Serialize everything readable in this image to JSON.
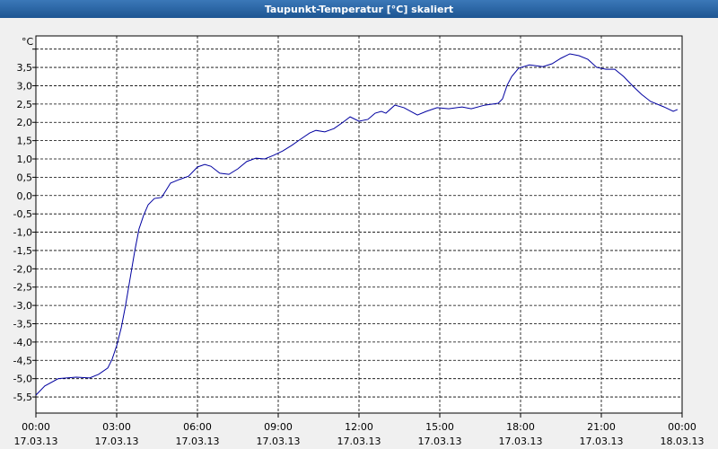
{
  "chart_data": {
    "type": "line",
    "title": "Taupunkt-Temperatur [°C] skaliert",
    "y_unit": "°C",
    "x": [
      0,
      0.33,
      0.83,
      1.5,
      2,
      2.33,
      2.67,
      2.83,
      3,
      3.17,
      3.33,
      3.5,
      3.67,
      3.83,
      4,
      4.17,
      4.4,
      4.67,
      4.83,
      5,
      5.33,
      5.67,
      6,
      6.27,
      6.5,
      6.83,
      7.17,
      7.5,
      7.83,
      8.17,
      8.5,
      8.83,
      9.17,
      9.5,
      9.83,
      10.17,
      10.4,
      10.73,
      11.07,
      11.4,
      11.67,
      12,
      12.33,
      12.6,
      12.83,
      13,
      13.33,
      13.67,
      14.17,
      14.5,
      14.9,
      15.33,
      15.83,
      16.17,
      16.67,
      17.17,
      17.33,
      17.5,
      17.67,
      17.93,
      18.33,
      18.83,
      19.17,
      19.5,
      19.83,
      20.17,
      20.5,
      20.83,
      21.17,
      21.5,
      21.83,
      22.17,
      22.5,
      22.83,
      23.33,
      23.67,
      23.83
    ],
    "series": [
      {
        "name": "Taupunkt",
        "color": "#0000a0",
        "values": [
          -5.45,
          -5.2,
          -5.0,
          -4.96,
          -4.98,
          -4.88,
          -4.71,
          -4.47,
          -4.1,
          -3.61,
          -3.0,
          -2.26,
          -1.52,
          -0.91,
          -0.54,
          -0.25,
          -0.08,
          -0.05,
          0.14,
          0.34,
          0.44,
          0.53,
          0.78,
          0.85,
          0.8,
          0.61,
          0.58,
          0.73,
          0.93,
          1.02,
          1.0,
          1.1,
          1.22,
          1.37,
          1.54,
          1.71,
          1.78,
          1.74,
          1.83,
          2.0,
          2.15,
          2.03,
          2.08,
          2.25,
          2.3,
          2.25,
          2.47,
          2.4,
          2.2,
          2.3,
          2.4,
          2.37,
          2.42,
          2.37,
          2.47,
          2.52,
          2.64,
          3.01,
          3.25,
          3.48,
          3.57,
          3.52,
          3.6,
          3.75,
          3.87,
          3.82,
          3.72,
          3.5,
          3.45,
          3.45,
          3.25,
          2.99,
          2.76,
          2.57,
          2.42,
          2.3,
          2.35
        ]
      }
    ],
    "xlim": [
      0,
      24
    ],
    "xticks": [
      {
        "value": 0,
        "label": "00:00"
      },
      {
        "value": 3,
        "label": "03:00"
      },
      {
        "value": 6,
        "label": "06:00"
      },
      {
        "value": 9,
        "label": "09:00"
      },
      {
        "value": 12,
        "label": "12:00"
      },
      {
        "value": 15,
        "label": "15:00"
      },
      {
        "value": 18,
        "label": "18:00"
      },
      {
        "value": 21,
        "label": "21:00"
      },
      {
        "value": 24,
        "label": "00:00"
      }
    ],
    "xtick_dates": [
      "17.03.13",
      "17.03.13",
      "17.03.13",
      "17.03.13",
      "17.03.13",
      "17.03.13",
      "17.03.13",
      "17.03.13",
      "18.03.13"
    ],
    "ylim": [
      -5.94,
      4.36
    ],
    "yticks": [
      {
        "value": -5.5,
        "label": "-5,5"
      },
      {
        "value": -5,
        "label": "-5,0"
      },
      {
        "value": -4.5,
        "label": "-4,5"
      },
      {
        "value": -4,
        "label": "-4,0"
      },
      {
        "value": -3.5,
        "label": "-3,5"
      },
      {
        "value": -3,
        "label": "-3,0"
      },
      {
        "value": -2.5,
        "label": "-2,5"
      },
      {
        "value": -2,
        "label": "-2,0"
      },
      {
        "value": -1.5,
        "label": "-1,5"
      },
      {
        "value": -1,
        "label": "-1,0"
      },
      {
        "value": -0.5,
        "label": "-0,5"
      },
      {
        "value": 0,
        "label": "0,0"
      },
      {
        "value": 0.5,
        "label": "0,5"
      },
      {
        "value": 1,
        "label": "1,0"
      },
      {
        "value": 1.5,
        "label": "1,5"
      },
      {
        "value": 2,
        "label": "2,0"
      },
      {
        "value": 2.5,
        "label": "2,5"
      },
      {
        "value": 3,
        "label": "3,0"
      },
      {
        "value": 3.5,
        "label": "3,5"
      },
      4
    ],
    "grid": true
  }
}
